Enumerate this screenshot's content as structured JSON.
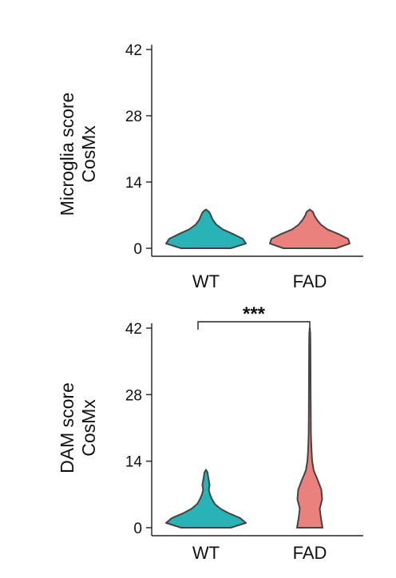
{
  "chart_data": [
    {
      "type": "violin",
      "ylabel": [
        "Microglia score",
        "CosMx"
      ],
      "ylim": [
        0,
        42
      ],
      "yticks": [
        0,
        14,
        28,
        42
      ],
      "categories": [
        "WT",
        "FAD"
      ],
      "series": [
        {
          "category": "WT",
          "color": "#2ab3b6",
          "density": [
            [
              0,
              0.62
            ],
            [
              1,
              1.0
            ],
            [
              2,
              0.92
            ],
            [
              3,
              0.68
            ],
            [
              4,
              0.42
            ],
            [
              5,
              0.26
            ],
            [
              6,
              0.17
            ],
            [
              7,
              0.12
            ],
            [
              7.7,
              0.08
            ],
            [
              8.2,
              0.0
            ]
          ]
        },
        {
          "category": "FAD",
          "color": "#ea817c",
          "density": [
            [
              0,
              0.66
            ],
            [
              1,
              1.0
            ],
            [
              2,
              0.96
            ],
            [
              3,
              0.72
            ],
            [
              4,
              0.44
            ],
            [
              5,
              0.28
            ],
            [
              6,
              0.18
            ],
            [
              7,
              0.11
            ],
            [
              7.7,
              0.08
            ],
            [
              8.2,
              0.0
            ]
          ]
        }
      ]
    },
    {
      "type": "violin",
      "ylabel": [
        "DAM score",
        "CosMx"
      ],
      "ylim": [
        0,
        42
      ],
      "yticks": [
        0,
        14,
        28,
        42
      ],
      "categories": [
        "WT",
        "FAD"
      ],
      "significance": {
        "between": [
          "WT",
          "FAD"
        ],
        "label": "***"
      },
      "series": [
        {
          "category": "WT",
          "color": "#2ab3b6",
          "density": [
            [
              0,
              0.62
            ],
            [
              1,
              1.0
            ],
            [
              2,
              0.86
            ],
            [
              3,
              0.58
            ],
            [
              4,
              0.36
            ],
            [
              5,
              0.22
            ],
            [
              6,
              0.15
            ],
            [
              7,
              0.1
            ],
            [
              8,
              0.07
            ],
            [
              9,
              0.09
            ],
            [
              10,
              0.07
            ],
            [
              11,
              0.05
            ],
            [
              11.6,
              0.04
            ],
            [
              12.2,
              0.0
            ]
          ]
        },
        {
          "category": "FAD",
          "color": "#ea817c",
          "density": [
            [
              0,
              0.32
            ],
            [
              2,
              0.28
            ],
            [
              4,
              0.25
            ],
            [
              6,
              0.31
            ],
            [
              8,
              0.29
            ],
            [
              10,
              0.2
            ],
            [
              12,
              0.1
            ],
            [
              14,
              0.06
            ],
            [
              16,
              0.045
            ],
            [
              18,
              0.035
            ],
            [
              20,
              0.028
            ],
            [
              24,
              0.025
            ],
            [
              28,
              0.022
            ],
            [
              32,
              0.02
            ],
            [
              36,
              0.018
            ],
            [
              39,
              0.016
            ],
            [
              41,
              0.012
            ],
            [
              42,
              0.0
            ]
          ]
        }
      ]
    }
  ]
}
